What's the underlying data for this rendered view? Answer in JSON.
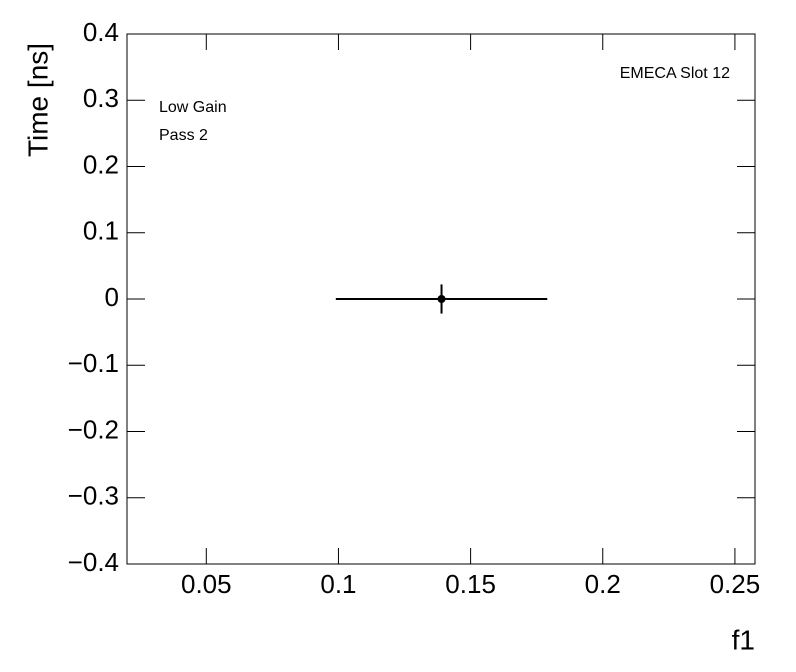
{
  "chart_data": {
    "type": "scatter",
    "x_label": "f1",
    "y_label": "Time [ns]",
    "annotations": [
      "Low Gain",
      "Pass 2",
      "EMECA Slot 12"
    ],
    "x": [
      0.139
    ],
    "values": [
      0
    ],
    "xerr": [
      0.04
    ],
    "yerr": [
      0.022
    ],
    "color": "#000000",
    "xlim": [
      0.02,
      0.2576
    ],
    "xticks": [
      0.05,
      0.1,
      0.15,
      0.2,
      0.25
    ],
    "ylim": [
      -0.4,
      0.4
    ],
    "yticks": [
      {
        "value": -0.4,
        "label": "−0.4"
      },
      {
        "value": -0.3,
        "label": "−0.3"
      },
      {
        "value": -0.2,
        "label": "−0.2"
      },
      {
        "value": -0.1,
        "label": "−0.1"
      },
      0,
      0.1,
      0.2,
      0.3,
      0.4
    ],
    "grid": false
  }
}
